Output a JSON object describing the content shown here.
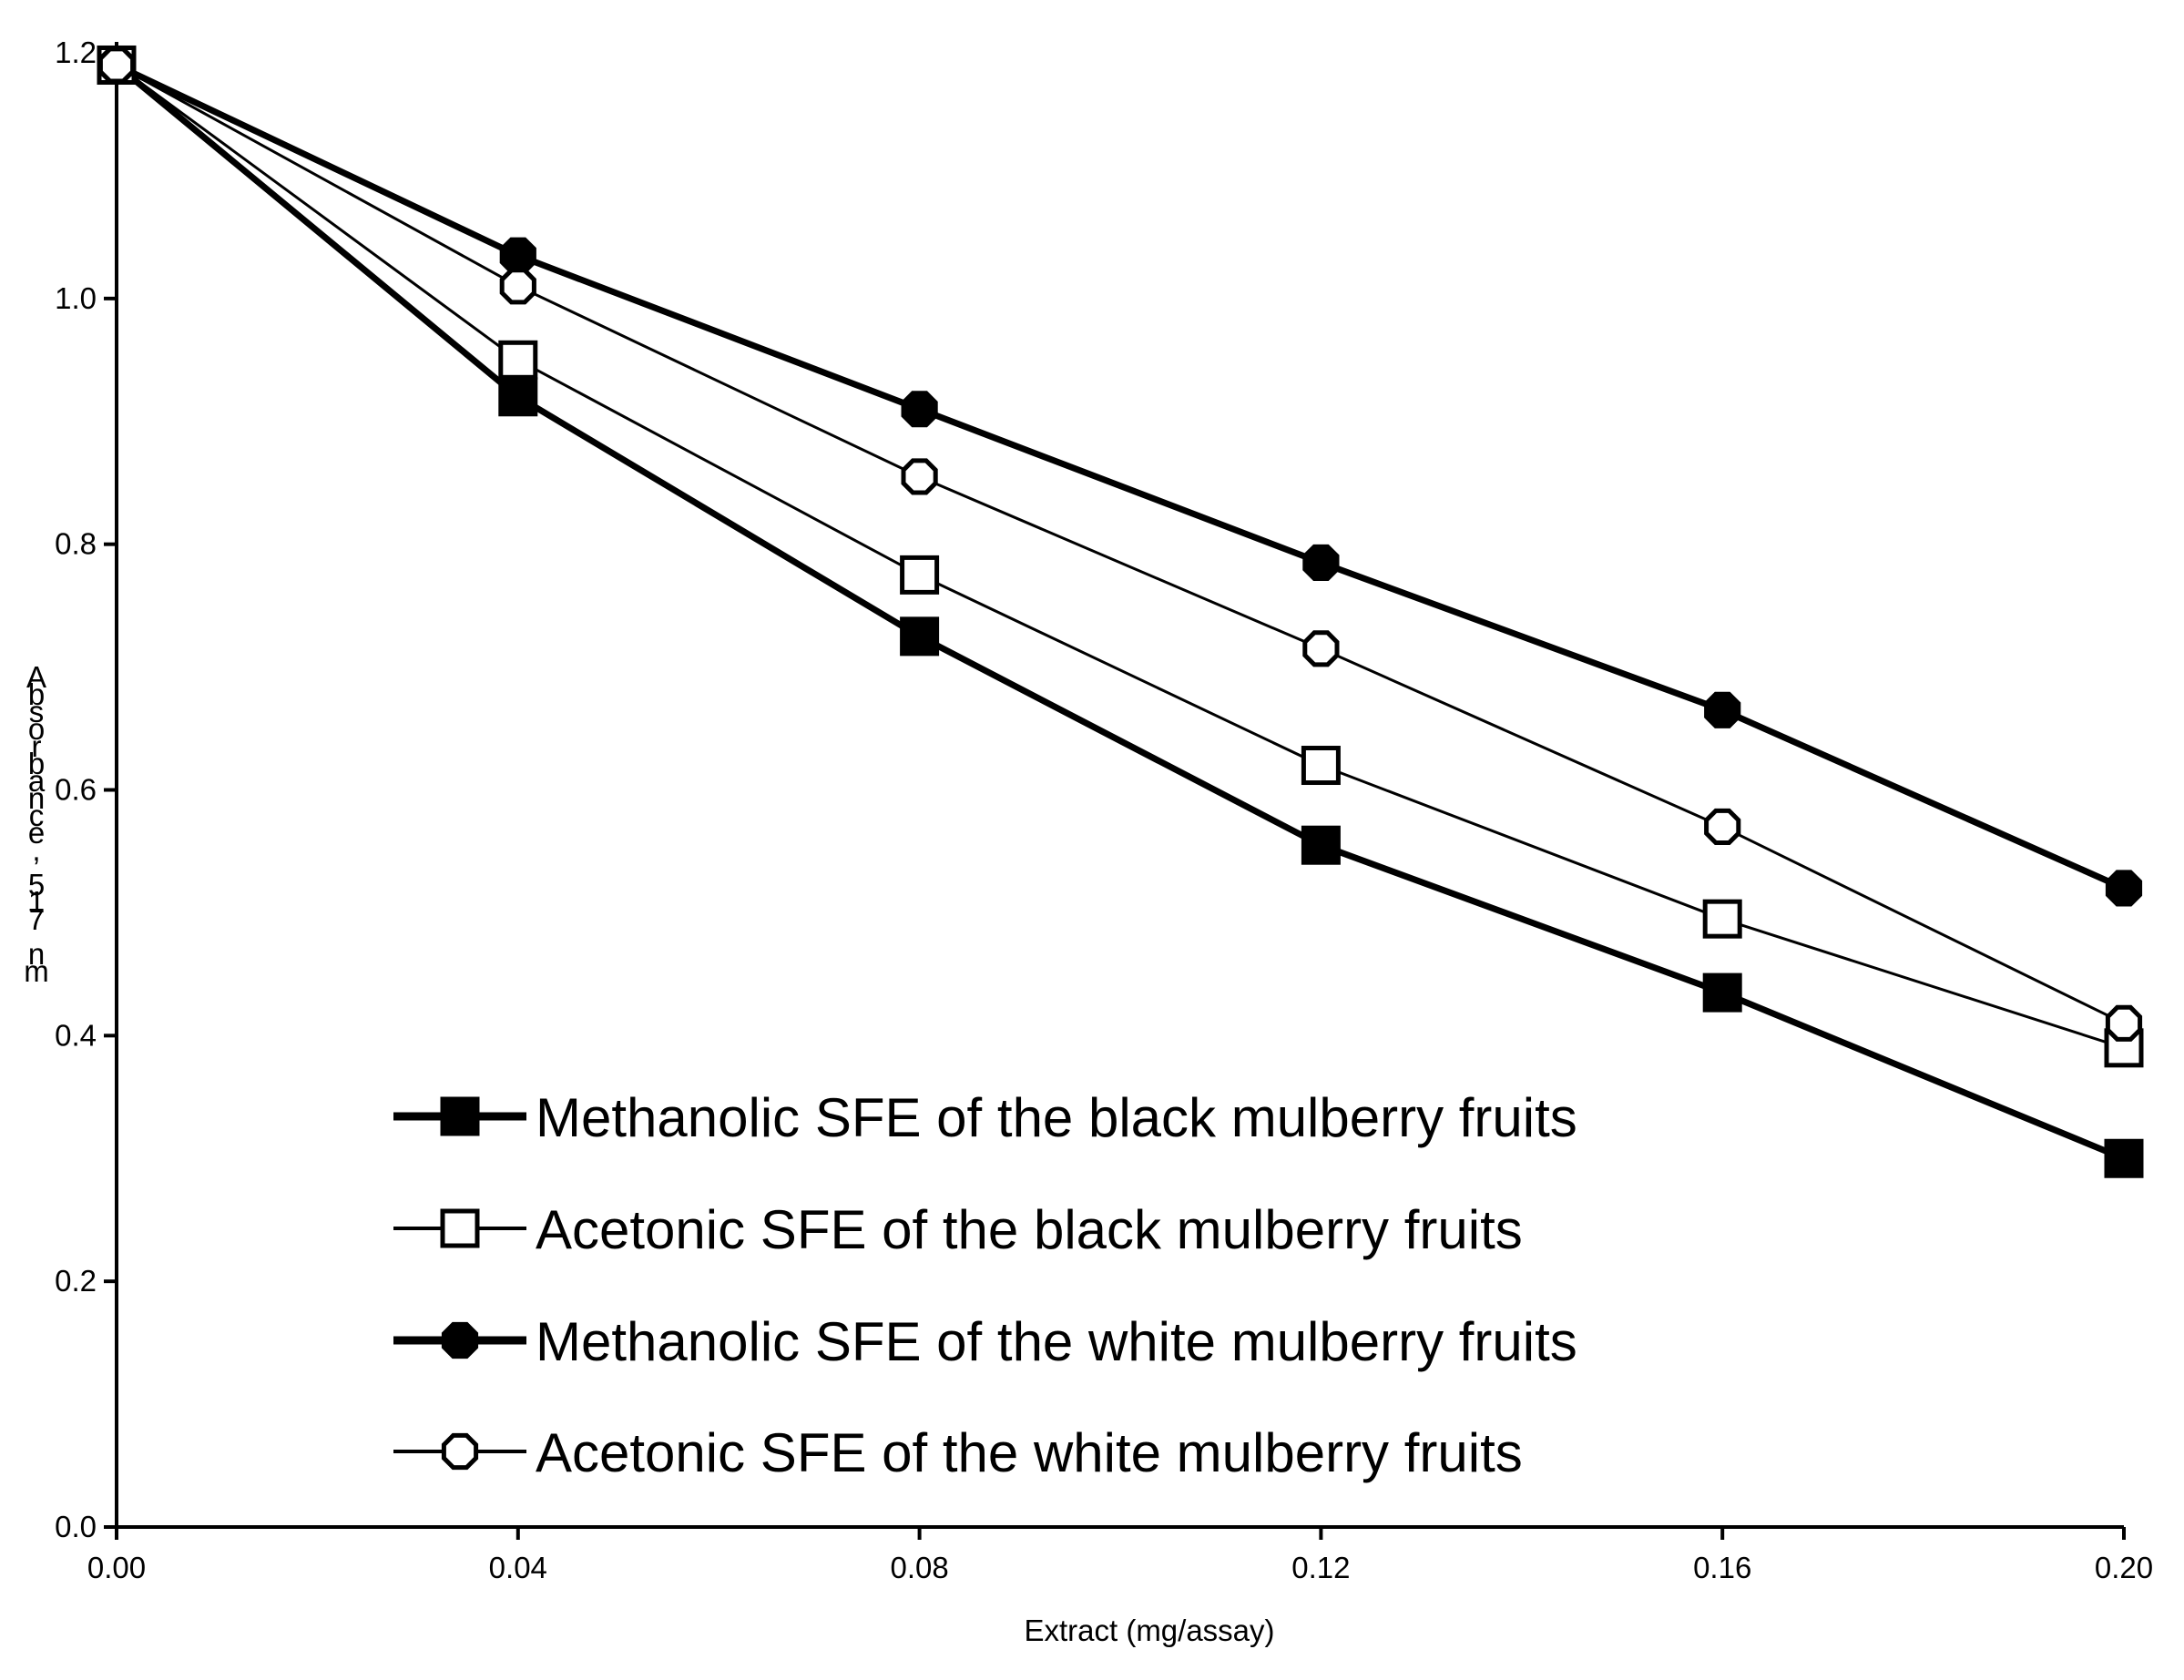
{
  "chart_data": {
    "type": "line",
    "title": "",
    "xlabel": "Extract (mg/assay)",
    "ylabel": "Absorbance, 517 nm",
    "x": [
      0.0,
      0.04,
      0.08,
      0.12,
      0.16,
      0.2
    ],
    "x_tick_labels": [
      "0.00",
      "0.04",
      "0.08",
      "0.12",
      "0.16",
      "0.20"
    ],
    "y_tick_labels": [
      "0.0",
      "0.2",
      "0.4",
      "0.6",
      "0.8",
      "1.0",
      "1.2"
    ],
    "xlim": [
      0,
      0.2
    ],
    "ylim": [
      0,
      1.2
    ],
    "grid": false,
    "legend_position": "bottom-left (inside plot area)",
    "series": [
      {
        "name": "Methanolic SFE of the black mulberry fruits",
        "marker": "filled-square",
        "line": "thick",
        "values": [
          1.19,
          0.92,
          0.725,
          0.555,
          0.435,
          0.3
        ]
      },
      {
        "name": "Acetonic SFE of the black mulberry fruits",
        "marker": "open-square",
        "line": "thin",
        "values": [
          1.19,
          0.95,
          0.775,
          0.62,
          0.495,
          0.39
        ]
      },
      {
        "name": "Methanolic SFE of the white mulberry fruits",
        "marker": "filled-octagon",
        "line": "thick",
        "values": [
          1.19,
          1.035,
          0.91,
          0.785,
          0.665,
          0.52
        ]
      },
      {
        "name": "Acetonic SFE of the white mulberry fruits",
        "marker": "open-octagon",
        "line": "thin",
        "values": [
          1.19,
          1.01,
          0.855,
          0.715,
          0.57,
          0.41
        ]
      }
    ]
  }
}
